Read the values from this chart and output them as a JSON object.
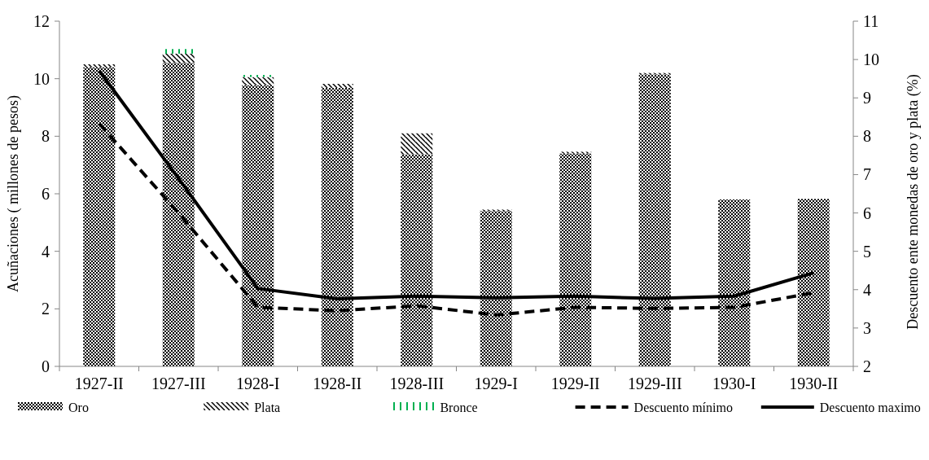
{
  "chart_data": {
    "type": "bar",
    "stacked": true,
    "categories": [
      "1927-II",
      "1927-III",
      "1928-I",
      "1928-II",
      "1928-III",
      "1929-I",
      "1929-II",
      "1929-III",
      "1930-I",
      "1930-II"
    ],
    "ylabel": "Acuñaciones ( millones de pesos)",
    "y2label": "Descuento ente monedas de oro y plata (%)",
    "ylim": [
      0,
      12
    ],
    "yticks": [
      0,
      2,
      4,
      6,
      8,
      10,
      12
    ],
    "y2lim": [
      2,
      11
    ],
    "y2ticks": [
      2,
      3,
      4,
      5,
      6,
      7,
      8,
      9,
      10,
      11
    ],
    "legend": "bottom",
    "grid": false,
    "series": [
      {
        "name": "Oro",
        "color": "#000000",
        "values": [
          10.4,
          10.55,
          9.77,
          9.68,
          7.37,
          5.4,
          7.4,
          10.15,
          5.8,
          5.82
        ]
      },
      {
        "name": "Plata",
        "color": "#000000",
        "values": [
          0.1,
          0.32,
          0.29,
          0.14,
          0.73,
          0.05,
          0.06,
          0.05,
          null,
          null
        ]
      },
      {
        "name": "Bronce",
        "color": "#00b050",
        "values": [
          null,
          0.16,
          0.07,
          null,
          null,
          null,
          null,
          null,
          null,
          null
        ]
      },
      {
        "name": "Descuento mínimo",
        "type": "line",
        "axis": "y2",
        "color": "#000000",
        "line_style": "dashed",
        "values": [
          8.33,
          6.0,
          3.54,
          3.45,
          3.58,
          3.34,
          3.54,
          3.51,
          3.54,
          3.92
        ]
      },
      {
        "name": "Descuento maximo",
        "type": "line",
        "axis": "y2",
        "color": "#000000",
        "line_style": "solid",
        "values": [
          9.71,
          6.9,
          4.03,
          3.76,
          3.83,
          3.79,
          3.83,
          3.77,
          3.83,
          4.44
        ]
      }
    ]
  }
}
